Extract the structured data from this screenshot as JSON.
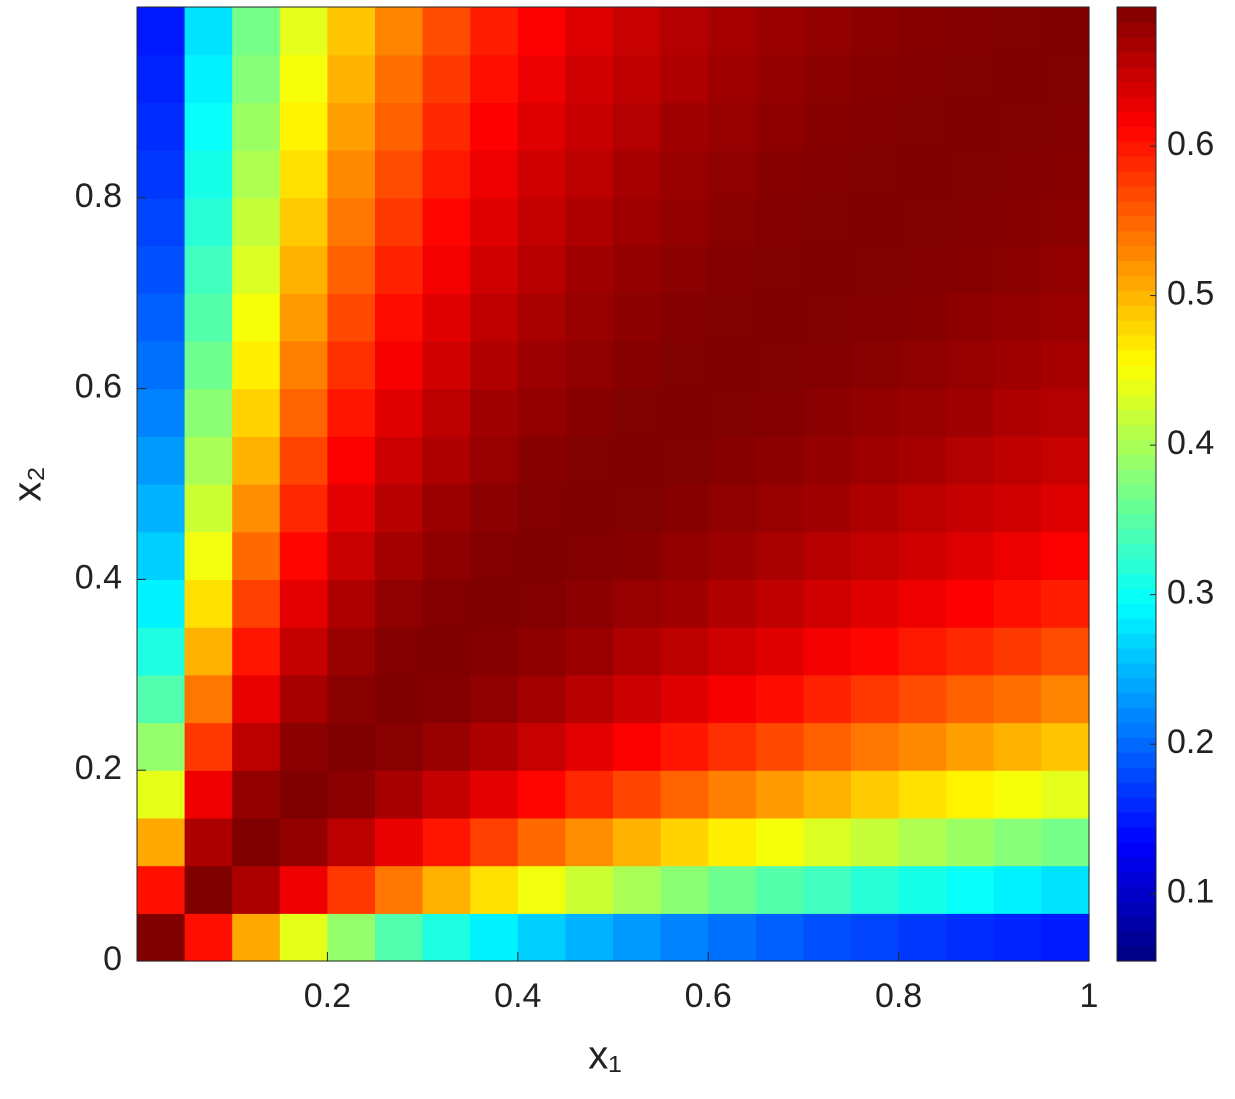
{
  "chart_data": {
    "type": "heatmap",
    "xlabel": "x₁",
    "ylabel": "x₂",
    "colormap": "jet",
    "x": [
      0.025,
      0.075,
      0.125,
      0.175,
      0.225,
      0.275,
      0.325,
      0.375,
      0.425,
      0.475,
      0.525,
      0.575,
      0.625,
      0.675,
      0.725,
      0.775,
      0.825,
      0.875,
      0.925,
      0.975
    ],
    "y": [
      0.025,
      0.075,
      0.125,
      0.175,
      0.225,
      0.275,
      0.325,
      0.375,
      0.425,
      0.475,
      0.525,
      0.575,
      0.625,
      0.675,
      0.725,
      0.775,
      0.825,
      0.875,
      0.925,
      0.975
    ],
    "z": [
      [
        0.693,
        0.604,
        0.508,
        0.438,
        0.387,
        0.345,
        0.313,
        0.287,
        0.265,
        0.246,
        0.231,
        0.217,
        0.205,
        0.195,
        0.185,
        0.177,
        0.169,
        0.162,
        0.156,
        0.15
      ],
      [
        0.604,
        0.693,
        0.665,
        0.623,
        0.579,
        0.539,
        0.503,
        0.473,
        0.445,
        0.421,
        0.4,
        0.381,
        0.363,
        0.347,
        0.334,
        0.32,
        0.308,
        0.298,
        0.287,
        0.277
      ],
      [
        0.508,
        0.665,
        0.693,
        0.681,
        0.655,
        0.627,
        0.6,
        0.573,
        0.547,
        0.524,
        0.501,
        0.482,
        0.464,
        0.448,
        0.432,
        0.418,
        0.403,
        0.391,
        0.379,
        0.368
      ],
      [
        0.438,
        0.623,
        0.681,
        0.693,
        0.686,
        0.669,
        0.65,
        0.63,
        0.61,
        0.589,
        0.57,
        0.551,
        0.534,
        0.517,
        0.501,
        0.487,
        0.473,
        0.461,
        0.448,
        0.437
      ],
      [
        0.387,
        0.579,
        0.655,
        0.686,
        0.693,
        0.687,
        0.677,
        0.663,
        0.648,
        0.631,
        0.615,
        0.6,
        0.583,
        0.568,
        0.553,
        0.539,
        0.527,
        0.514,
        0.501,
        0.49
      ],
      [
        0.345,
        0.539,
        0.627,
        0.669,
        0.687,
        0.693,
        0.69,
        0.682,
        0.671,
        0.658,
        0.646,
        0.632,
        0.619,
        0.606,
        0.592,
        0.579,
        0.566,
        0.553,
        0.543,
        0.53
      ],
      [
        0.313,
        0.503,
        0.6,
        0.65,
        0.677,
        0.69,
        0.693,
        0.69,
        0.684,
        0.676,
        0.664,
        0.655,
        0.644,
        0.632,
        0.621,
        0.61,
        0.598,
        0.588,
        0.577,
        0.566
      ],
      [
        0.287,
        0.473,
        0.573,
        0.63,
        0.663,
        0.682,
        0.69,
        0.693,
        0.691,
        0.686,
        0.678,
        0.672,
        0.662,
        0.653,
        0.644,
        0.633,
        0.623,
        0.613,
        0.604,
        0.595
      ],
      [
        0.265,
        0.445,
        0.547,
        0.61,
        0.648,
        0.671,
        0.684,
        0.691,
        0.693,
        0.691,
        0.688,
        0.681,
        0.675,
        0.667,
        0.659,
        0.651,
        0.643,
        0.634,
        0.625,
        0.615
      ],
      [
        0.246,
        0.421,
        0.524,
        0.589,
        0.631,
        0.658,
        0.676,
        0.686,
        0.691,
        0.693,
        0.692,
        0.689,
        0.683,
        0.677,
        0.672,
        0.663,
        0.656,
        0.649,
        0.642,
        0.634
      ],
      [
        0.231,
        0.4,
        0.501,
        0.57,
        0.615,
        0.646,
        0.664,
        0.678,
        0.688,
        0.692,
        0.693,
        0.692,
        0.689,
        0.685,
        0.68,
        0.674,
        0.668,
        0.661,
        0.653,
        0.648
      ],
      [
        0.217,
        0.381,
        0.482,
        0.551,
        0.6,
        0.632,
        0.655,
        0.672,
        0.681,
        0.689,
        0.692,
        0.693,
        0.692,
        0.69,
        0.686,
        0.681,
        0.677,
        0.672,
        0.664,
        0.66
      ],
      [
        0.205,
        0.363,
        0.464,
        0.534,
        0.583,
        0.619,
        0.644,
        0.662,
        0.675,
        0.683,
        0.689,
        0.692,
        0.693,
        0.692,
        0.69,
        0.687,
        0.683,
        0.678,
        0.674,
        0.668
      ],
      [
        0.195,
        0.347,
        0.448,
        0.517,
        0.568,
        0.606,
        0.632,
        0.653,
        0.667,
        0.677,
        0.685,
        0.69,
        0.692,
        0.693,
        0.692,
        0.69,
        0.688,
        0.684,
        0.68,
        0.676
      ],
      [
        0.185,
        0.334,
        0.432,
        0.501,
        0.553,
        0.592,
        0.621,
        0.644,
        0.659,
        0.672,
        0.68,
        0.686,
        0.69,
        0.692,
        0.693,
        0.692,
        0.691,
        0.688,
        0.686,
        0.681
      ],
      [
        0.177,
        0.32,
        0.418,
        0.487,
        0.539,
        0.579,
        0.61,
        0.633,
        0.651,
        0.663,
        0.674,
        0.681,
        0.687,
        0.69,
        0.692,
        0.693,
        0.692,
        0.691,
        0.689,
        0.686
      ],
      [
        0.169,
        0.308,
        0.403,
        0.473,
        0.527,
        0.566,
        0.598,
        0.623,
        0.643,
        0.656,
        0.668,
        0.677,
        0.683,
        0.688,
        0.691,
        0.692,
        0.693,
        0.692,
        0.691,
        0.689
      ],
      [
        0.162,
        0.298,
        0.391,
        0.461,
        0.514,
        0.553,
        0.588,
        0.613,
        0.634,
        0.649,
        0.661,
        0.672,
        0.678,
        0.684,
        0.688,
        0.691,
        0.692,
        0.693,
        0.692,
        0.691
      ],
      [
        0.156,
        0.287,
        0.379,
        0.448,
        0.501,
        0.543,
        0.577,
        0.604,
        0.625,
        0.642,
        0.653,
        0.664,
        0.674,
        0.68,
        0.686,
        0.689,
        0.691,
        0.692,
        0.693,
        0.692
      ],
      [
        0.15,
        0.277,
        0.368,
        0.437,
        0.49,
        0.53,
        0.566,
        0.595,
        0.615,
        0.634,
        0.648,
        0.66,
        0.668,
        0.676,
        0.681,
        0.686,
        0.689,
        0.691,
        0.692,
        0.693
      ]
    ],
    "xlim": [
      0,
      1
    ],
    "ylim": [
      0,
      1
    ],
    "xticks": [
      0.2,
      0.4,
      0.6,
      0.8,
      1
    ],
    "yticks": [
      0,
      0.2,
      0.4,
      0.6,
      0.8
    ],
    "clim": [
      0.055,
      0.693
    ],
    "cticks": [
      0.1,
      0.2,
      0.3,
      0.4,
      0.5,
      0.6
    ]
  }
}
